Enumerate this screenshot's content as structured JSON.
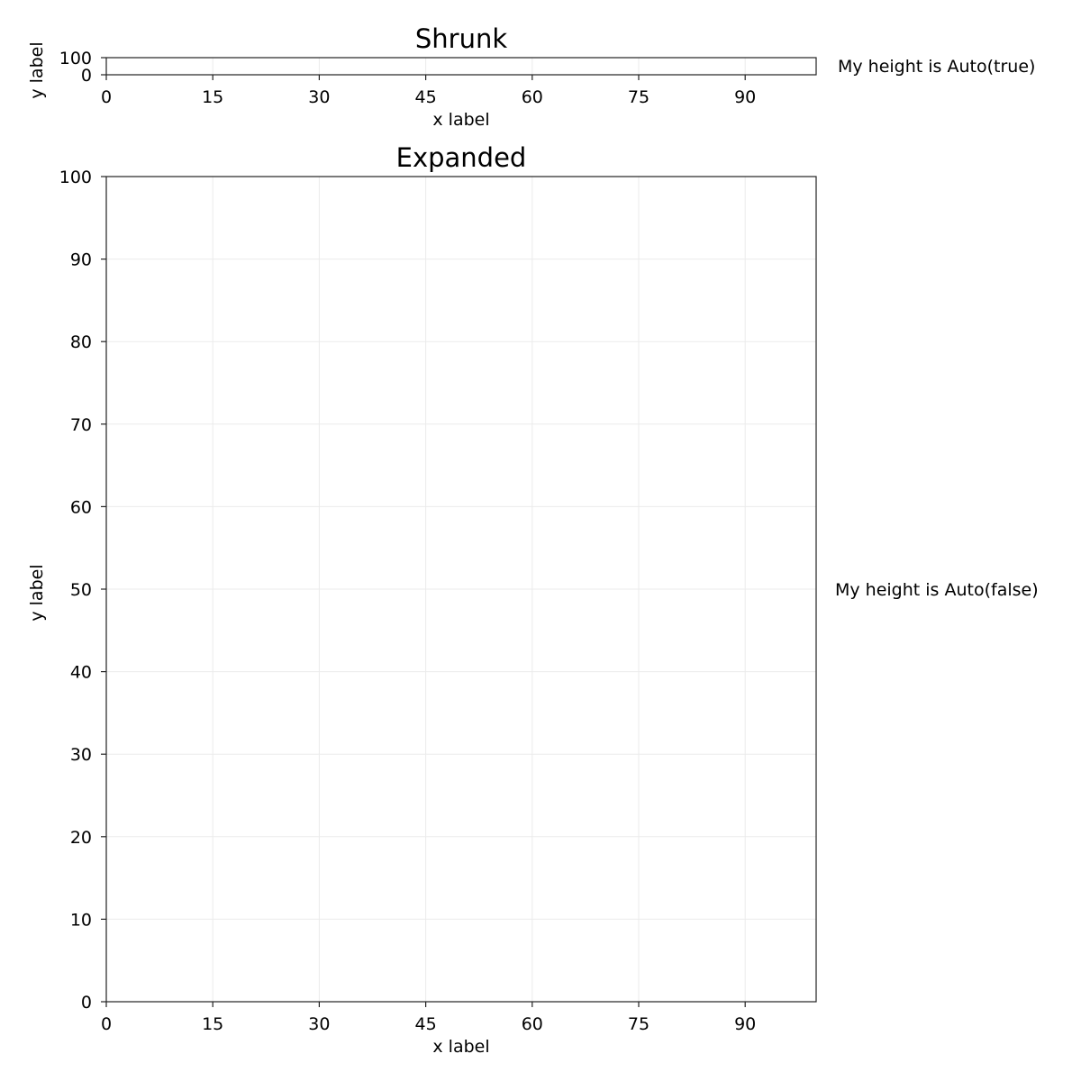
{
  "chart_data": [
    {
      "type": "line",
      "title": "Shrunk",
      "xlabel": "x label",
      "ylabel": "y label",
      "xlim": [
        0,
        100
      ],
      "ylim": [
        0,
        100
      ],
      "x_ticks": [
        0,
        15,
        30,
        45,
        60,
        75,
        90
      ],
      "y_ticks": [
        0,
        100
      ],
      "grid": true,
      "series": [],
      "side_label": "My height is Auto(true)"
    },
    {
      "type": "line",
      "title": "Expanded",
      "xlabel": "x label",
      "ylabel": "y label",
      "xlim": [
        0,
        100
      ],
      "ylim": [
        0,
        100
      ],
      "x_ticks": [
        0,
        15,
        30,
        45,
        60,
        75,
        90
      ],
      "y_ticks": [
        0,
        10,
        20,
        30,
        40,
        50,
        60,
        70,
        80,
        90,
        100
      ],
      "grid": true,
      "series": [],
      "side_label": "My height is Auto(false)"
    }
  ]
}
